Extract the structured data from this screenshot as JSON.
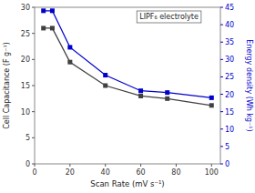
{
  "chart_data": {
    "type": "line",
    "x": [
      5,
      10,
      20,
      40,
      60,
      75,
      100
    ],
    "series": [
      {
        "color": "#404040",
        "marker": "square",
        "values": [
          26.0,
          26.0,
          19.5,
          15.0,
          13.0,
          12.5,
          11.2
        ]
      },
      {
        "color": "#0000cc",
        "marker": "square",
        "axis": "y2",
        "values": [
          44.0,
          44.0,
          33.5,
          25.5,
          21.0,
          20.5,
          19.0
        ]
      }
    ],
    "xlabel": "Scan Rate (mV s⁻¹)",
    "ylabel": "Cell Capacitance (F g⁻¹)",
    "y2label": "Energy density (Wh kg⁻¹)",
    "annotations": [
      "LIPF₆ electrolyte"
    ],
    "xlim": [
      0,
      105
    ],
    "xticks": [
      0,
      20,
      40,
      60,
      80,
      100
    ],
    "ylim": [
      0,
      30
    ],
    "yticks": [
      0,
      5,
      10,
      15,
      20,
      25,
      30
    ],
    "y2lim": [
      0,
      45
    ],
    "y2ticks": [
      0,
      5,
      10,
      15,
      20,
      25,
      30,
      35,
      40,
      45
    ],
    "grid": false
  }
}
